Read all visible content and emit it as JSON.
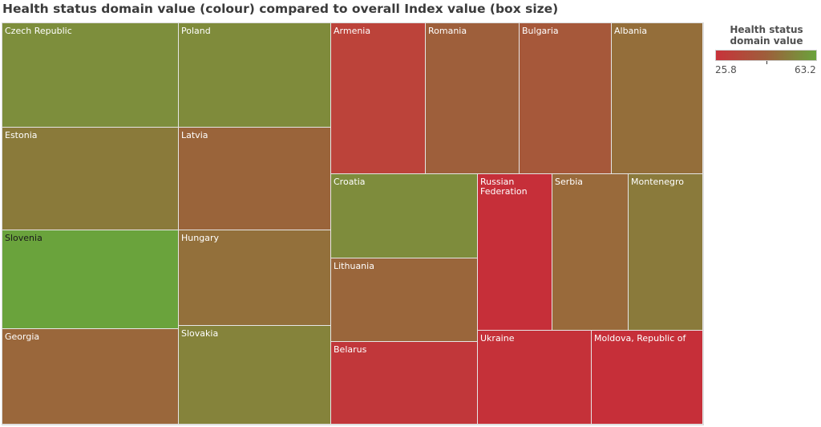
{
  "chart_data": {
    "type": "treemap",
    "title": "Health status domain value (colour) compared to overall Index value (box size)",
    "legend": {
      "title": "Health status domain value",
      "min": 25.8,
      "max": 63.2,
      "min_label": "25.8",
      "max_label": "63.2",
      "color_low": "#c8323a",
      "color_high": "#6aa33c",
      "placement": "top-right"
    },
    "items": [
      {
        "label": "Czech Republic",
        "health_status": 55,
        "color": "#7d8e3c"
      },
      {
        "label": "Poland",
        "health_status": 54,
        "color": "#7f8b3b"
      },
      {
        "label": "Estonia",
        "health_status": 47,
        "color": "#8a7a3a"
      },
      {
        "label": "Latvia",
        "health_status": 41,
        "color": "#9a643a"
      },
      {
        "label": "Slovenia",
        "health_status": 63.2,
        "color": "#6aa33c"
      },
      {
        "label": "Hungary",
        "health_status": 44,
        "color": "#93703b"
      },
      {
        "label": "Georgia",
        "health_status": 41,
        "color": "#9a673b"
      },
      {
        "label": "Slovakia",
        "health_status": 50,
        "color": "#85833b"
      },
      {
        "label": "Armenia",
        "health_status": 30,
        "color": "#bc433a"
      },
      {
        "label": "Romania",
        "health_status": 39,
        "color": "#9e5f3b"
      },
      {
        "label": "Bulgaria",
        "health_status": 36,
        "color": "#a6583a"
      },
      {
        "label": "Albania",
        "health_status": 43,
        "color": "#946e3a"
      },
      {
        "label": "Croatia",
        "health_status": 55,
        "color": "#7e8c3c"
      },
      {
        "label": "Lithuania",
        "health_status": 41,
        "color": "#9a663b"
      },
      {
        "label": "Russian Federation",
        "health_status": 25.8,
        "color": "#c62f39"
      },
      {
        "label": "Serbia",
        "health_status": 41,
        "color": "#996a3b"
      },
      {
        "label": "Montenegro",
        "health_status": 47,
        "color": "#8a7a3b"
      },
      {
        "label": "Belarus",
        "health_status": 28,
        "color": "#c1373a"
      },
      {
        "label": "Ukraine",
        "health_status": 26,
        "color": "#c53139"
      },
      {
        "label": "Moldova, Republic of",
        "health_status": 26,
        "color": "#c62f39"
      }
    ]
  }
}
